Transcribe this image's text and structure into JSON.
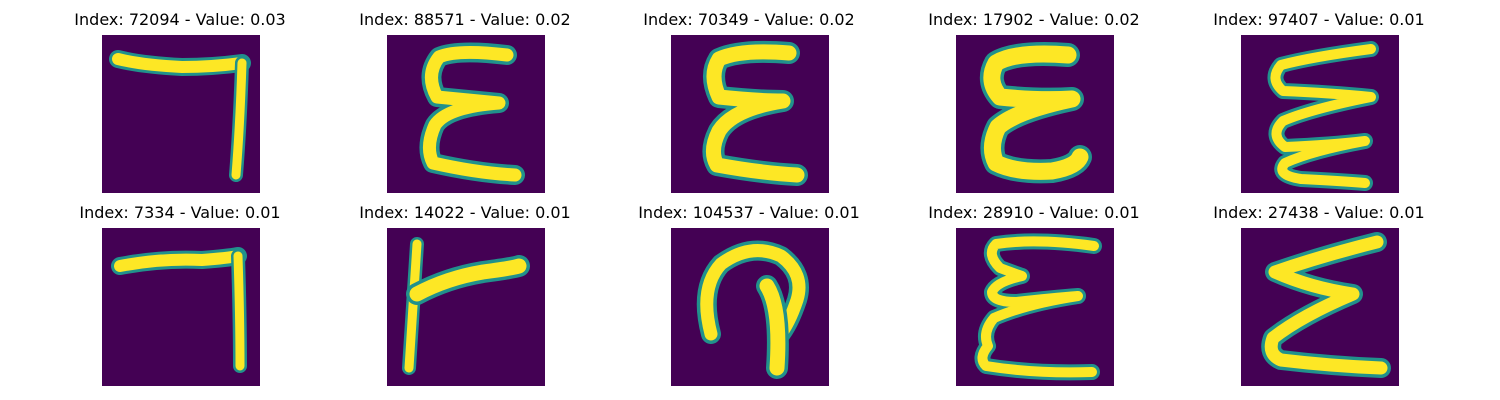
{
  "palette": {
    "background": "#440154",
    "stroke": "#fde725",
    "edge": "#21918c"
  },
  "panels": [
    {
      "title": "Index: 72094 - Value: 0.03",
      "glyph": "7-hook"
    },
    {
      "title": "Index: 88571 - Value: 0.02",
      "glyph": "epsilon-3"
    },
    {
      "title": "Index: 70349 - Value: 0.02",
      "glyph": "epsilon-3"
    },
    {
      "title": "Index: 17902 - Value: 0.02",
      "glyph": "epsilon-3"
    },
    {
      "title": "Index: 97407 - Value: 0.01",
      "glyph": "epsilon-3"
    },
    {
      "title": "Index: 7334 - Value: 0.01",
      "glyph": "7-hook"
    },
    {
      "title": "Index: 14022 - Value: 0.01",
      "glyph": "r-shape"
    },
    {
      "title": "Index: 104537 - Value: 0.01",
      "glyph": "loop-shape"
    },
    {
      "title": "Index: 28910 - Value: 0.01",
      "glyph": "epsilon-3"
    },
    {
      "title": "Index: 27438 - Value: 0.01",
      "glyph": "epsilon-3"
    }
  ]
}
